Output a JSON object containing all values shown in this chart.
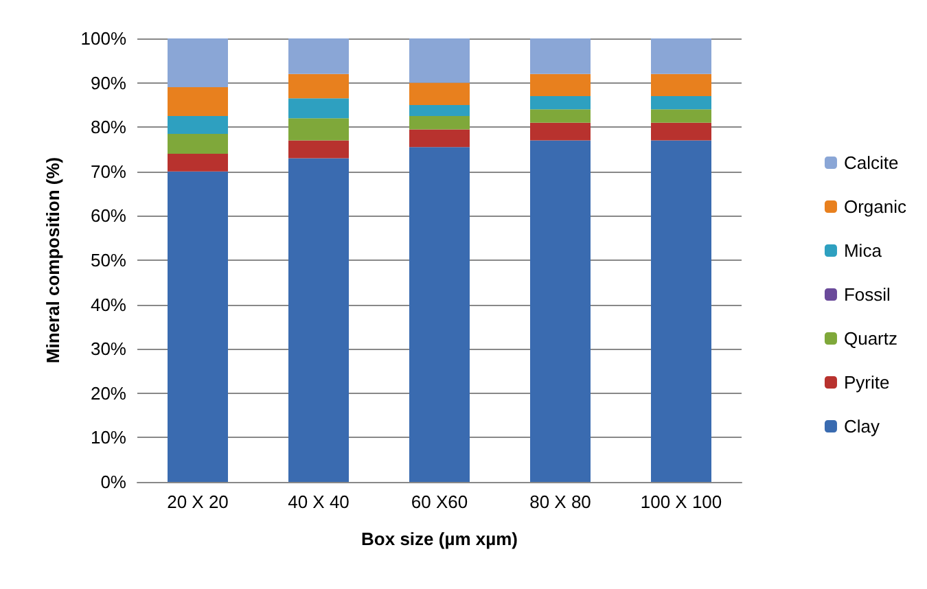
{
  "chart_data": {
    "type": "bar",
    "stacked": true,
    "xlabel": "Box size (µm xµm)",
    "ylabel": "Mineral composition (%)",
    "categories": [
      "20 X 20",
      "40 X 40",
      "60 X60",
      "80 X 80",
      "100 X 100"
    ],
    "series": [
      {
        "name": "Clay",
        "color": "#3a6bb0",
        "values": [
          70,
          73,
          75.5,
          77,
          77
        ]
      },
      {
        "name": "Pyrite",
        "color": "#b8322e",
        "values": [
          4,
          4,
          4,
          4,
          4
        ]
      },
      {
        "name": "Quartz",
        "color": "#7fa83a",
        "values": [
          4.5,
          5,
          3,
          3,
          3
        ]
      },
      {
        "name": "Fossil",
        "color": "#6a4a9a",
        "values": [
          0,
          0,
          0,
          0,
          0
        ]
      },
      {
        "name": "Mica",
        "color": "#2ea0c0",
        "values": [
          4,
          4.5,
          2.5,
          3,
          3
        ]
      },
      {
        "name": "Organic",
        "color": "#e8801e",
        "values": [
          6.5,
          5.5,
          5,
          5,
          5
        ]
      },
      {
        "name": "Calcite",
        "color": "#8aa6d6",
        "values": [
          11,
          8,
          10,
          8,
          8
        ]
      }
    ],
    "ylim": [
      0,
      100
    ],
    "yticks": [
      {
        "value": 0,
        "label": "0%"
      },
      {
        "value": 10,
        "label": "10%"
      },
      {
        "value": 20,
        "label": "20%"
      },
      {
        "value": 30,
        "label": "30%"
      },
      {
        "value": 40,
        "label": "40%"
      },
      {
        "value": 50,
        "label": "50%"
      },
      {
        "value": 60,
        "label": "60%"
      },
      {
        "value": 70,
        "label": "70%"
      },
      {
        "value": 80,
        "label": "80%"
      },
      {
        "value": 90,
        "label": "90%"
      },
      {
        "value": 100,
        "label": "100%"
      }
    ],
    "grid": "y",
    "legend": "right"
  }
}
